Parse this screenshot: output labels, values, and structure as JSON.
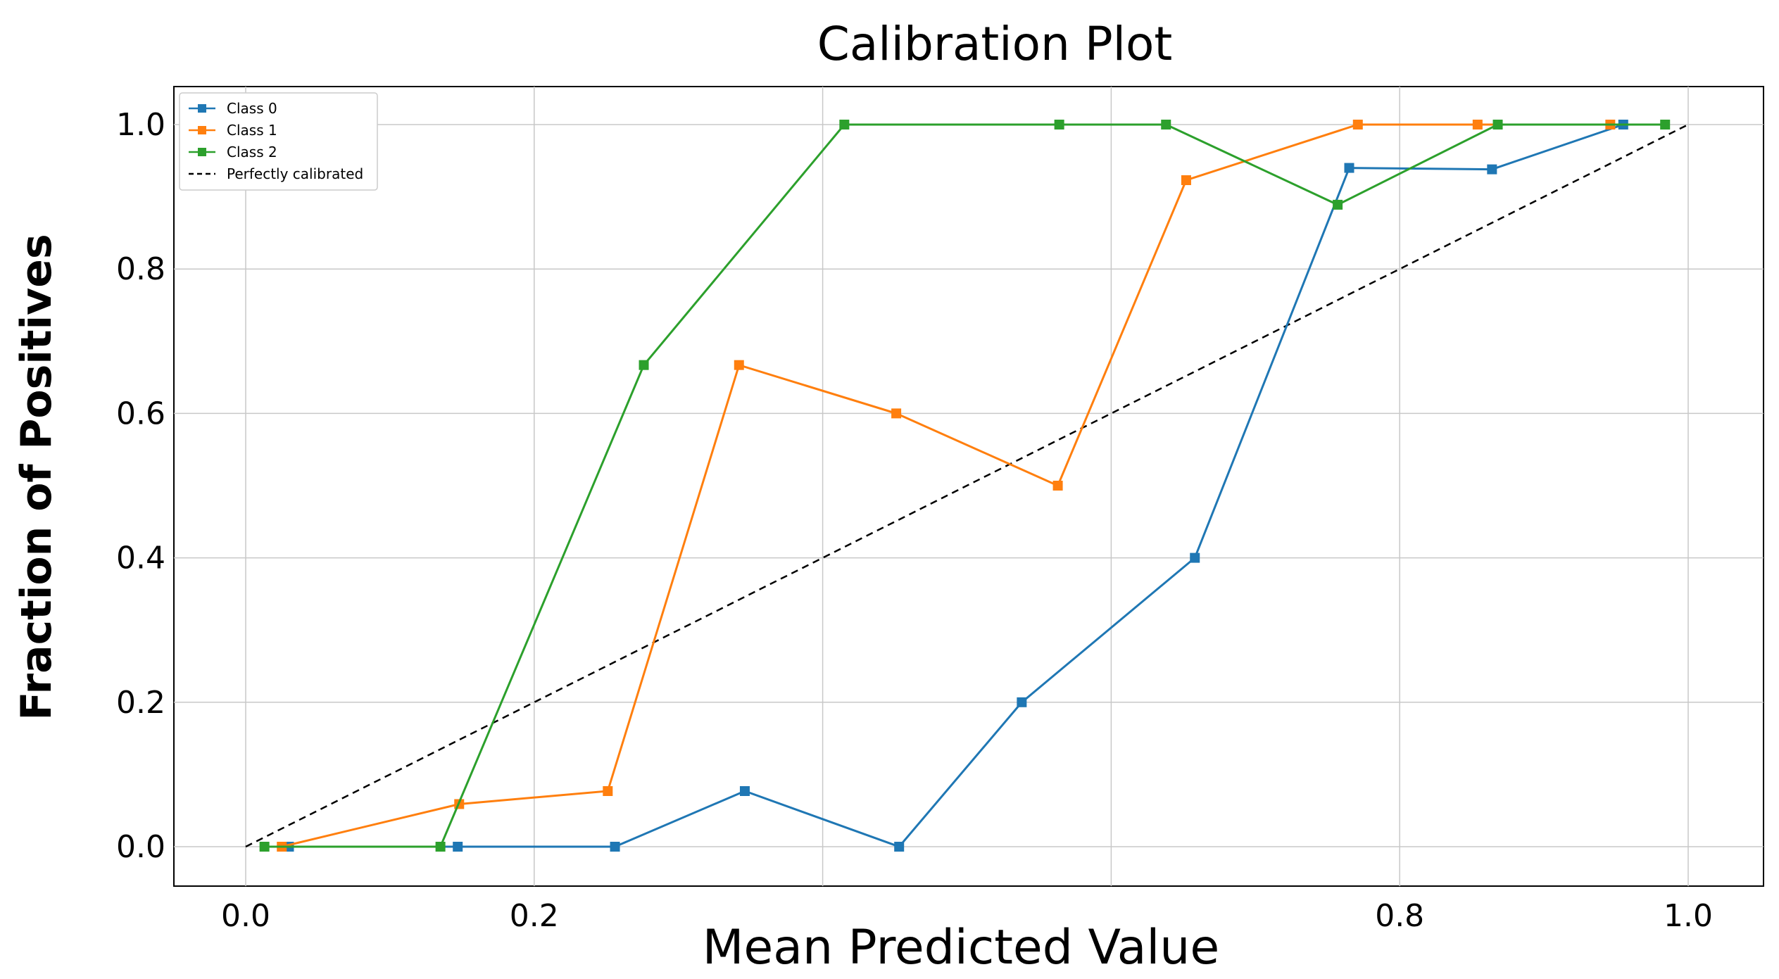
{
  "chart_data": {
    "type": "line",
    "title": "Calibration Plot",
    "xlabel": "Mean Predicted Value",
    "ylabel": "Fraction of Positives",
    "xlim": [
      -0.05,
      1.05
    ],
    "ylim": [
      -0.05,
      1.05
    ],
    "x_ticks": [
      0.0,
      0.2,
      0.4,
      0.6,
      0.8,
      1.0
    ],
    "x_tick_labels": [
      "0.0",
      "0.2",
      "",
      "",
      "0.8",
      "1.0"
    ],
    "y_ticks": [
      0.0,
      0.2,
      0.4,
      0.6,
      0.8,
      1.0
    ],
    "y_tick_labels": [
      "0.0",
      "0.2",
      "0.4",
      "0.6",
      "0.8",
      "1.0"
    ],
    "grid": true,
    "legend_position": "top-left",
    "series": [
      {
        "name": "Class 0",
        "color": "#1f77b4",
        "x": [
          0.03,
          0.147,
          0.256,
          0.346,
          0.453,
          0.538,
          0.658,
          0.765,
          0.864,
          0.955
        ],
        "y": [
          0.0,
          0.0,
          0.0,
          0.077,
          0.0,
          0.2,
          0.4,
          0.94,
          0.938,
          1.0
        ]
      },
      {
        "name": "Class 1",
        "color": "#ff7f0e",
        "x": [
          0.025,
          0.148,
          0.251,
          0.342,
          0.451,
          0.563,
          0.652,
          0.771,
          0.854,
          0.946
        ],
        "y": [
          0.0,
          0.059,
          0.077,
          0.667,
          0.6,
          0.5,
          0.923,
          1.0,
          1.0,
          1.0
        ]
      },
      {
        "name": "Class 2",
        "color": "#2ca02c",
        "x": [
          0.013,
          0.135,
          0.276,
          0.415,
          0.564,
          0.638,
          0.757,
          0.868,
          0.984
        ],
        "y": [
          0.0,
          0.0,
          0.667,
          1.0,
          1.0,
          1.0,
          0.889,
          1.0,
          1.0
        ]
      },
      {
        "name": "Perfectly calibrated",
        "color": "#000000",
        "style": "dashed",
        "x": [
          0.0,
          1.0
        ],
        "y": [
          0.0,
          1.0
        ]
      }
    ]
  }
}
